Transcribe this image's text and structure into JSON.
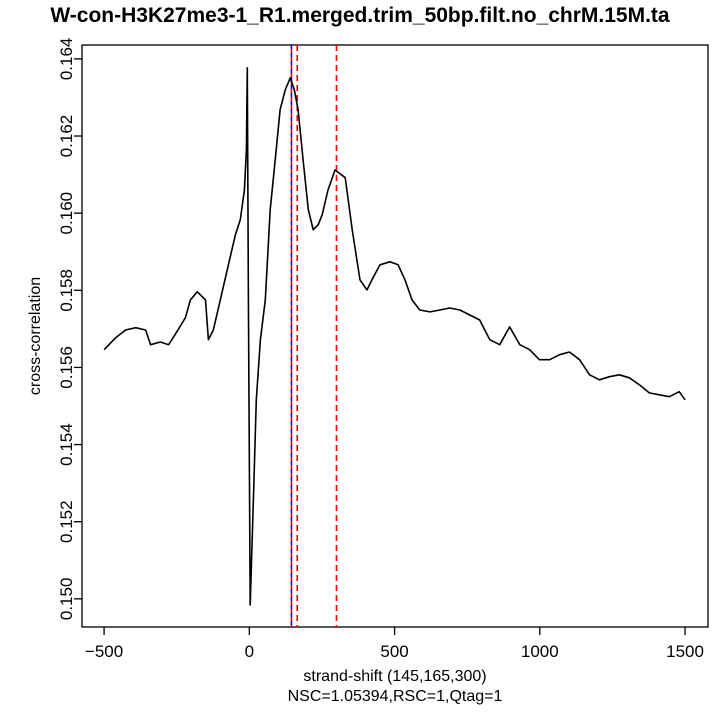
{
  "chart_data": {
    "type": "line",
    "title": "W-con-H3K27me3-1_R1.merged.trim_50bp.filt.no_chrM.15M.ta",
    "xlabel": "strand-shift (145,165,300)",
    "subtitle": "NSC=1.05394,RSC=1,Qtag=1",
    "ylabel": "cross-correlation",
    "xlim": [
      -576,
      1579
    ],
    "ylim": [
      0.14927,
      0.16436
    ],
    "xticks": [
      -500,
      0,
      500,
      1000,
      1500
    ],
    "xtick_labels": [
      "−500",
      "0",
      "500",
      "1000",
      "1500"
    ],
    "yticks": [
      0.15,
      0.152,
      0.154,
      0.156,
      0.158,
      0.16,
      0.162,
      0.164
    ],
    "ytick_labels": [
      "0.150",
      "0.152",
      "0.154",
      "0.156",
      "0.158",
      "0.160",
      "0.162",
      "0.164"
    ],
    "grid": false,
    "series": [
      {
        "name": "cross-correlation",
        "color": "#000000",
        "x": [
          -500,
          -460,
          -426,
          -391,
          -357,
          -340,
          -306,
          -278,
          -254,
          -220,
          -203,
          -179,
          -151,
          -141,
          -124,
          -100,
          -72,
          -48,
          -31,
          -17,
          -10,
          -7,
          -3,
          3,
          14,
          24,
          38,
          55,
          72,
          89,
          106,
          124,
          141,
          155,
          168,
          185,
          203,
          220,
          237,
          251,
          271,
          295,
          330,
          354,
          381,
          405,
          422,
          450,
          484,
          512,
          536,
          560,
          587,
          622,
          656,
          690,
          725,
          759,
          793,
          828,
          862,
          896,
          931,
          965,
          999,
          1034,
          1068,
          1102,
          1137,
          1171,
          1205,
          1240,
          1274,
          1308,
          1343,
          1377,
          1411,
          1446,
          1480,
          1500
        ],
        "y": [
          0.15646,
          0.15677,
          0.15697,
          0.15703,
          0.15697,
          0.15659,
          0.15666,
          0.15659,
          0.15687,
          0.15729,
          0.15775,
          0.15796,
          0.15775,
          0.15672,
          0.15697,
          0.15775,
          0.15866,
          0.15944,
          0.15983,
          0.1606,
          0.16164,
          0.16377,
          0.15775,
          0.14984,
          0.15257,
          0.15516,
          0.15672,
          0.15775,
          0.16009,
          0.16138,
          0.16268,
          0.1632,
          0.16351,
          0.1632,
          0.16268,
          0.16138,
          0.16009,
          0.15957,
          0.1597,
          0.15996,
          0.1606,
          0.16112,
          0.16092,
          0.15957,
          0.15827,
          0.15801,
          0.15827,
          0.15866,
          0.15874,
          0.15866,
          0.15827,
          0.15775,
          0.15749,
          0.15744,
          0.15749,
          0.15754,
          0.15749,
          0.15736,
          0.15723,
          0.15672,
          0.15659,
          0.15705,
          0.15659,
          0.15646,
          0.1562,
          0.1562,
          0.15633,
          0.1564,
          0.1562,
          0.15581,
          0.15568,
          0.15576,
          0.15581,
          0.15573,
          0.15555,
          0.15534,
          0.15529,
          0.15524,
          0.15537,
          0.15516
        ]
      }
    ],
    "vlines": [
      {
        "x": 145,
        "colors": [
          "#0000ff",
          "#ff0000"
        ]
      },
      {
        "x": 165,
        "colors": [
          "#ff0000"
        ]
      },
      {
        "x": 300,
        "colors": [
          "#ff0000"
        ]
      }
    ]
  }
}
